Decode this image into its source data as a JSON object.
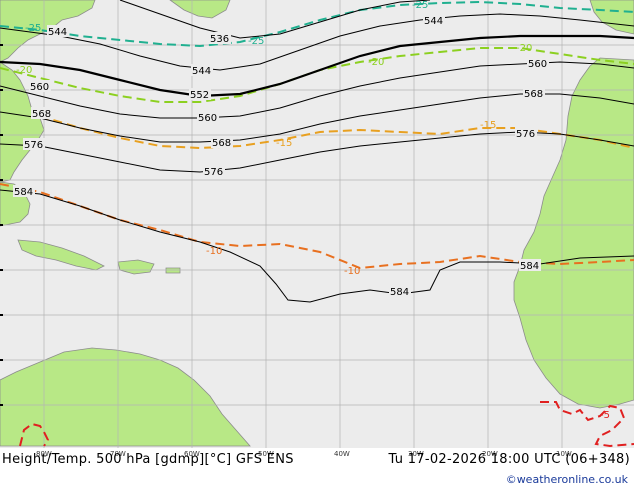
{
  "map": {
    "title": "Height/Temp. 500 hPa [gdmp][°C] GFS ENS",
    "valid_time": "Tu 17-02-2026 18:00 UTC (06+348)",
    "credit": "©weatheronline.co.uk",
    "longitude_labels": [
      "80W",
      "70W",
      "60W",
      "50W",
      "40W",
      "30W",
      "20W",
      "10W"
    ],
    "height_contour_labels": [
      "536",
      "544",
      "544",
      "544",
      "552",
      "560",
      "560",
      "560",
      "568",
      "568",
      "568",
      "576",
      "576",
      "576",
      "584",
      "584",
      "584"
    ],
    "temperature_contour_labels": [
      "-25",
      "-25",
      "-25",
      "-20",
      "-20",
      "-20",
      "-15",
      "-15",
      "-10",
      "-10",
      "-5"
    ],
    "colors": {
      "ocean": "#ececec",
      "land": "#b8e886",
      "coastline": "#8c8c8c",
      "grid": "#b4b4b4",
      "height_contour": "#000000",
      "temp_minus25": "#20b090",
      "temp_minus20": "#8cd020",
      "temp_minus15": "#e8a020",
      "temp_minus10": "#e87020",
      "temp_minus5": "#e02020"
    }
  }
}
